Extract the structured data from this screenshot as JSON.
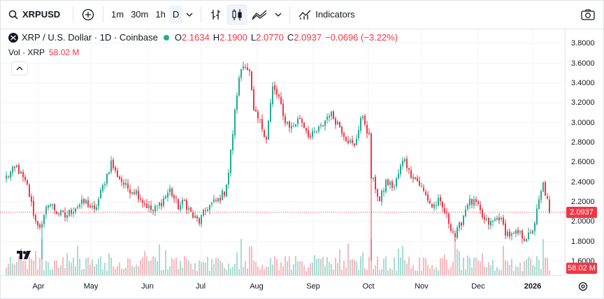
{
  "toolbar": {
    "symbol": "XRPUSD",
    "intervals": [
      "1m",
      "30m",
      "1h",
      "D"
    ],
    "active_interval": "D",
    "indicators_label": "Indicators"
  },
  "legend": {
    "title": "XRP / U.S. Dollar · 1D · Coinbase",
    "open_key": "O",
    "open": "2.1634",
    "high_key": "H",
    "high": "2.1900",
    "low_key": "L",
    "low": "2.0770",
    "close_key": "C",
    "close": "2.0937",
    "change": "−0.0696 (−3.22%)",
    "volume_label": "Vol · XRP",
    "volume_value": "58.02 M"
  },
  "price_axis": {
    "ticks": [
      "3.8000",
      "3.6000",
      "3.4000",
      "3.2000",
      "3.0000",
      "2.8000",
      "2.6000",
      "2.4000",
      "2.2000",
      "2.0000",
      "1.8000",
      "1.6000"
    ],
    "last_price": "2.0937",
    "volume_tag": "58.02 M"
  },
  "time_axis": {
    "ticks": [
      {
        "label": "Apr",
        "bold": false
      },
      {
        "label": "May",
        "bold": false
      },
      {
        "label": "Jun",
        "bold": false
      },
      {
        "label": "Jul",
        "bold": false
      },
      {
        "label": "Aug",
        "bold": false
      },
      {
        "label": "Sep",
        "bold": false
      },
      {
        "label": "Oct",
        "bold": false
      },
      {
        "label": "Nov",
        "bold": false
      },
      {
        "label": "Dec",
        "bold": false
      },
      {
        "label": "2026",
        "bold": true
      }
    ]
  },
  "colors": {
    "up": "#22ab94",
    "down": "#f23645",
    "up_volume": "#a8dcd2",
    "down_volume": "#f7b9be",
    "grid": "#f0f3fa"
  },
  "chart_data": {
    "type": "candlestick",
    "y_range": [
      1.5,
      3.9
    ],
    "anchors": [
      [
        0,
        2.45
      ],
      [
        5,
        2.55
      ],
      [
        10,
        2.35
      ],
      [
        14,
        2.0
      ],
      [
        17,
        1.95
      ],
      [
        20,
        2.2
      ],
      [
        24,
        2.1
      ],
      [
        28,
        2.05
      ],
      [
        33,
        2.15
      ],
      [
        38,
        2.2
      ],
      [
        42,
        2.1
      ],
      [
        46,
        2.35
      ],
      [
        50,
        2.6
      ],
      [
        52,
        2.5
      ],
      [
        57,
        2.35
      ],
      [
        62,
        2.3
      ],
      [
        66,
        2.18
      ],
      [
        70,
        2.1
      ],
      [
        74,
        2.2
      ],
      [
        78,
        2.32
      ],
      [
        82,
        2.15
      ],
      [
        85,
        2.2
      ],
      [
        89,
        2.05
      ],
      [
        92,
        2.0
      ],
      [
        96,
        2.15
      ],
      [
        101,
        2.22
      ],
      [
        104,
        2.3
      ],
      [
        106,
        2.5
      ],
      [
        108,
        2.9
      ],
      [
        110,
        3.3
      ],
      [
        112,
        3.55
      ],
      [
        114,
        3.6
      ],
      [
        116,
        3.5
      ],
      [
        118,
        3.1
      ],
      [
        121,
        3.0
      ],
      [
        124,
        2.85
      ],
      [
        127,
        3.35
      ],
      [
        130,
        3.25
      ],
      [
        132,
        3.05
      ],
      [
        136,
        2.95
      ],
      [
        140,
        3.05
      ],
      [
        145,
        2.85
      ],
      [
        150,
        2.95
      ],
      [
        154,
        3.1
      ],
      [
        158,
        3.0
      ],
      [
        162,
        2.85
      ],
      [
        166,
        2.75
      ],
      [
        169,
        3.05
      ],
      [
        171,
        3.0
      ],
      [
        173,
        2.85
      ],
      [
        174,
        2.45
      ],
      [
        176,
        2.35
      ],
      [
        178,
        2.2
      ],
      [
        181,
        2.4
      ],
      [
        185,
        2.35
      ],
      [
        188,
        2.55
      ],
      [
        190,
        2.65
      ],
      [
        192,
        2.5
      ],
      [
        195,
        2.45
      ],
      [
        199,
        2.3
      ],
      [
        203,
        2.15
      ],
      [
        206,
        2.2
      ],
      [
        209,
        2.1
      ],
      [
        212,
        1.95
      ],
      [
        214,
        1.85
      ],
      [
        217,
        2.0
      ],
      [
        220,
        2.2
      ],
      [
        224,
        2.18
      ],
      [
        228,
        2.0
      ],
      [
        231,
        1.98
      ],
      [
        235,
        2.05
      ],
      [
        238,
        1.9
      ],
      [
        241,
        1.85
      ],
      [
        244,
        1.88
      ],
      [
        247,
        1.84
      ],
      [
        250,
        1.86
      ],
      [
        252,
        2.0
      ],
      [
        254,
        2.2
      ],
      [
        256,
        2.38
      ],
      [
        258,
        2.2
      ],
      [
        259,
        2.09
      ]
    ],
    "last_close": 2.0937,
    "last_volume_millions": 58.02
  }
}
